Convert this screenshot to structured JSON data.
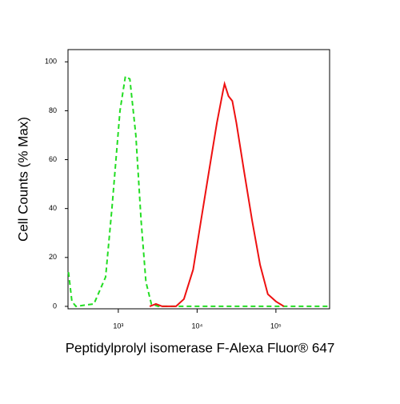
{
  "chart_data": {
    "type": "line",
    "x_label": "Peptidylprolyl isomerase F-Alexa Fluor® 647",
    "y_label": "Cell Counts (% Max)",
    "xscale": "log",
    "xlim": [
      230,
      480000
    ],
    "ylim": [
      -1,
      105
    ],
    "xticks": [
      {
        "value": 1000,
        "label": "10³"
      },
      {
        "value": 10000,
        "label": "10⁴"
      },
      {
        "value": 100000,
        "label": "10⁵"
      }
    ],
    "yticks": [
      0,
      20,
      40,
      60,
      80,
      100
    ],
    "series": [
      {
        "color": "#22dd22",
        "dash": true,
        "x": [
          233,
          258,
          290,
          490,
          690,
          830,
          1050,
          1230,
          1400,
          1670,
          1950,
          2240,
          2630,
          3200,
          6000,
          20000,
          100000,
          480000
        ],
        "values": [
          14,
          2,
          0,
          1,
          12,
          40,
          80,
          94,
          93,
          70,
          35,
          10,
          1,
          0,
          0,
          0,
          0,
          0
        ]
      },
      {
        "color": "#ee1111",
        "dash": false,
        "x": [
          2500,
          3000,
          3600,
          5400,
          6800,
          8900,
          11200,
          14100,
          17800,
          21300,
          22300,
          25000,
          28000,
          31500,
          39500,
          50000,
          63000,
          79000,
          100000,
          126000
        ],
        "values": [
          0,
          1,
          0,
          0,
          3,
          15,
          35,
          55,
          75,
          88,
          91,
          86,
          84,
          75,
          55,
          35,
          17,
          5,
          2,
          0
        ]
      }
    ]
  }
}
